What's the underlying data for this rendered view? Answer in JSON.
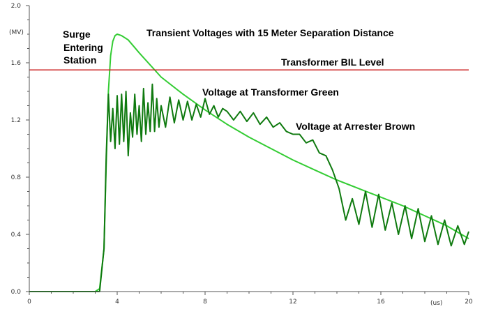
{
  "chart_data": {
    "type": "line",
    "title": "Transient Voltages with 15 Meter Separation Distance",
    "xlabel": "(us)",
    "ylabel": "(MV)",
    "xlim": [
      0,
      20
    ],
    "ylim": [
      0,
      2.0
    ],
    "x_ticks": [
      0,
      4,
      8,
      12,
      16,
      20
    ],
    "x_tick_labels": [
      "0",
      "4",
      "8",
      "12",
      "16",
      "20"
    ],
    "y_ticks": [
      0,
      0.4,
      0.8,
      1.2,
      1.6,
      2.0
    ],
    "y_tick_labels": [
      "0.0",
      "0.4",
      "0.8",
      "1.2",
      "1.6",
      "2.0"
    ],
    "grid": false,
    "annotations": {
      "surge": [
        "Surge",
        "Entering",
        "Station"
      ],
      "bil": "Transformer BIL Level",
      "transformer": "Voltage at Transformer Green",
      "arrester": "Voltage at Arrester Brown"
    },
    "series": [
      {
        "name": "Surge Entering Station",
        "color": "#33cc33",
        "x": [
          0,
          3.0,
          3.2,
          3.4,
          3.5,
          3.6,
          3.7,
          3.8,
          3.9,
          4.0,
          4.2,
          4.5,
          5,
          6,
          7,
          8,
          9,
          10,
          11,
          12,
          13,
          14,
          15,
          16,
          17,
          18,
          19,
          20
        ],
        "y": [
          0,
          0,
          0.02,
          0.3,
          0.9,
          1.4,
          1.65,
          1.75,
          1.79,
          1.8,
          1.79,
          1.76,
          1.67,
          1.5,
          1.38,
          1.27,
          1.17,
          1.08,
          1.0,
          0.92,
          0.85,
          0.78,
          0.72,
          0.66,
          0.6,
          0.53,
          0.46,
          0.37
        ]
      },
      {
        "name": "Transformer BIL Level",
        "color": "#cc2222",
        "x": [
          0,
          20
        ],
        "y": [
          1.55,
          1.55
        ]
      },
      {
        "name": "Voltage at Transformer",
        "color": "#0f7a0f",
        "x": [
          0,
          3.2,
          3.4,
          3.5,
          3.6,
          3.7,
          3.8,
          3.9,
          4.0,
          4.1,
          4.2,
          4.3,
          4.4,
          4.5,
          4.6,
          4.7,
          4.8,
          4.9,
          5.0,
          5.1,
          5.2,
          5.3,
          5.4,
          5.5,
          5.6,
          5.7,
          5.8,
          5.9,
          6.0,
          6.2,
          6.4,
          6.6,
          6.8,
          7.0,
          7.2,
          7.4,
          7.6,
          7.8,
          8.0,
          8.2,
          8.4,
          8.6,
          8.8,
          9.0,
          9.3,
          9.6,
          9.9,
          10.2,
          10.5,
          10.8,
          11.1,
          11.4,
          11.7,
          12.0,
          12.3,
          12.6,
          12.9,
          13.2,
          13.5,
          13.8,
          14.1,
          14.4,
          14.7,
          15.0,
          15.3,
          15.6,
          15.9,
          16.2,
          16.5,
          16.8,
          17.1,
          17.4,
          17.7,
          18.0,
          18.3,
          18.6,
          18.9,
          19.2,
          19.5,
          19.8,
          20.0
        ],
        "y": [
          0,
          0,
          0.3,
          0.95,
          1.38,
          1.05,
          1.28,
          1.0,
          1.37,
          1.03,
          1.38,
          1.05,
          1.4,
          0.95,
          1.25,
          1.08,
          1.38,
          1.1,
          1.3,
          1.05,
          1.42,
          1.1,
          1.32,
          1.12,
          1.45,
          1.12,
          1.35,
          1.15,
          1.3,
          1.15,
          1.36,
          1.18,
          1.34,
          1.2,
          1.33,
          1.2,
          1.31,
          1.22,
          1.35,
          1.24,
          1.3,
          1.22,
          1.28,
          1.26,
          1.2,
          1.26,
          1.19,
          1.25,
          1.17,
          1.22,
          1.15,
          1.18,
          1.12,
          1.1,
          1.1,
          1.04,
          1.06,
          0.97,
          0.95,
          0.85,
          0.72,
          0.5,
          0.65,
          0.47,
          0.7,
          0.45,
          0.68,
          0.43,
          0.62,
          0.4,
          0.6,
          0.37,
          0.58,
          0.35,
          0.53,
          0.33,
          0.5,
          0.32,
          0.46,
          0.33,
          0.42
        ]
      }
    ]
  }
}
